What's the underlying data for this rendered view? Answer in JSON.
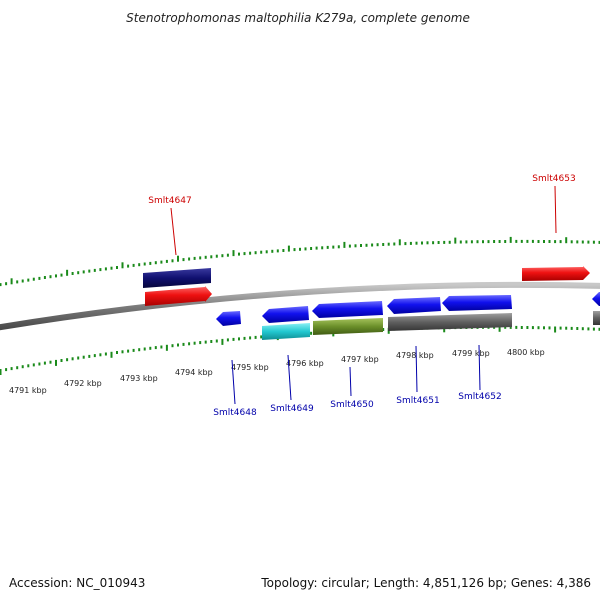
{
  "title": "Stenotrophomonas maltophilia K279a, complete genome",
  "footer": {
    "accession": "Accession: NC_010943",
    "summary": "Topology: circular; Length: 4,851,126 bp; Genes: 4,386"
  },
  "scale_labels": [
    "4791 kbp",
    "4792 kbp",
    "4793 kbp",
    "4794 kbp",
    "4795 kbp",
    "4796 kbp",
    "4797 kbp",
    "4798 kbp",
    "4799 kbp",
    "4800 kbp"
  ],
  "gene_labels": {
    "smlt4647": "Smlt4647",
    "smlt4648": "Smlt4648",
    "smlt4649": "Smlt4649",
    "smlt4650": "Smlt4650",
    "smlt4651": "Smlt4651",
    "smlt4652": "Smlt4652",
    "smlt4653": "Smlt4653"
  },
  "colors": {
    "tick": "#1a8a1a",
    "backbone": "#7a7a7a",
    "forward_gene": "#ee1111",
    "forward_cds": "#101070",
    "reverse_gene": "#1111ee",
    "reverse_cds_cyan": "#22c8d0",
    "reverse_cds_olive": "#6b8f2a",
    "reverse_cds_gray": "#606060",
    "label_forward": "#cc0000",
    "label_reverse": "#0000aa"
  }
}
